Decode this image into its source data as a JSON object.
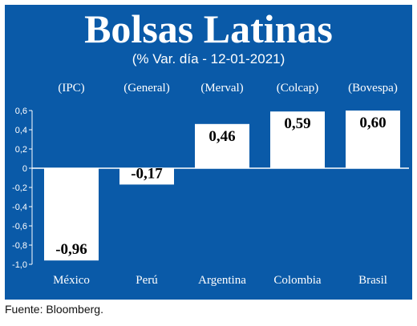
{
  "colors": {
    "background": "#0a5aa8",
    "bars": "#ffffff",
    "text": "#ffffff",
    "grid": "#ffffff"
  },
  "chart_data": {
    "type": "bar",
    "title": "Bolsas Latinas",
    "subtitle": "(% Var. día - 12-01-2021)",
    "categories": [
      "México",
      "Perú",
      "Argentina",
      "Colombia",
      "Brasil"
    ],
    "index_labels": [
      "(IPC)",
      "(General)",
      "(Merval)",
      "(Colcap)",
      "(Bovespa)"
    ],
    "values": [
      -0.96,
      -0.17,
      0.46,
      0.59,
      0.6
    ],
    "value_labels": [
      "-0,96",
      "-0,17",
      "0,46",
      "0,59",
      "0,60"
    ],
    "ylim": [
      -1.0,
      0.6
    ],
    "yticks": [
      "0,6",
      "0,4",
      "0,2",
      "0",
      "-0,2",
      "-0,4",
      "-0,6",
      "-0,8",
      "-1,0"
    ],
    "xlabel": "",
    "ylabel": "",
    "grid": true
  },
  "footer": {
    "source": "Fuente: Bloomberg."
  }
}
